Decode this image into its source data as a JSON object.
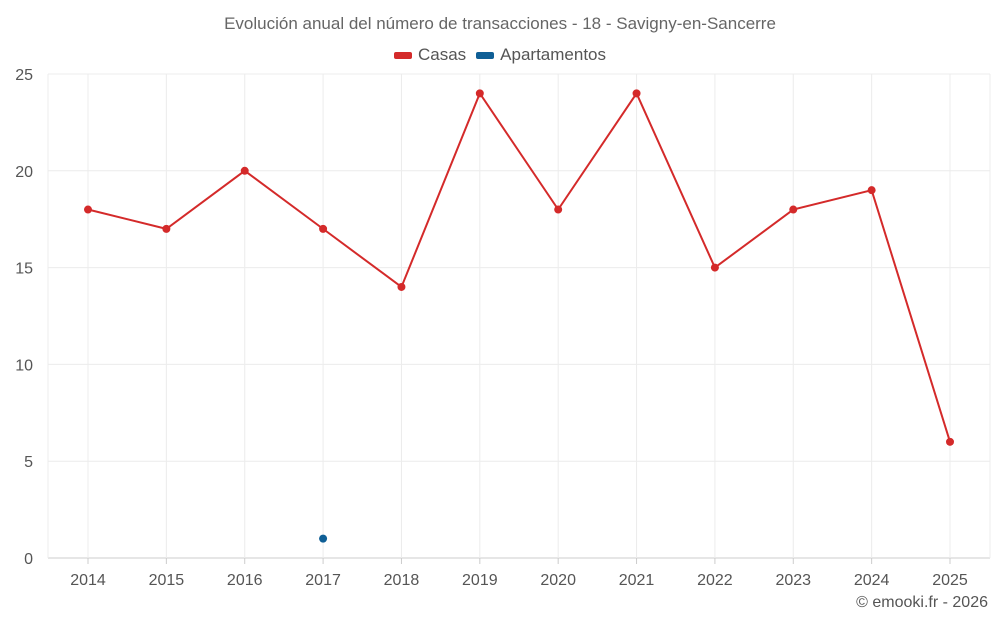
{
  "chart_data": {
    "type": "line",
    "title": "Evolución anual del número de transacciones - 18 - Savigny-en-Sancerre",
    "categories": [
      "2014",
      "2015",
      "2016",
      "2017",
      "2018",
      "2019",
      "2020",
      "2021",
      "2022",
      "2023",
      "2024",
      "2025"
    ],
    "series": [
      {
        "name": "Casas",
        "color": "#d42a2a",
        "values": [
          18,
          17,
          20,
          17,
          14,
          24,
          18,
          24,
          15,
          18,
          19,
          6
        ]
      },
      {
        "name": "Apartamentos",
        "color": "#0f5f96",
        "values": [
          null,
          null,
          null,
          1,
          null,
          null,
          null,
          null,
          null,
          null,
          null,
          null
        ]
      }
    ],
    "yticks": [
      0,
      5,
      10,
      15,
      20,
      25
    ],
    "ylim": [
      0,
      25
    ],
    "legend_position": "top-center",
    "grid": true
  },
  "credit": "© emooki.fr - 2026"
}
